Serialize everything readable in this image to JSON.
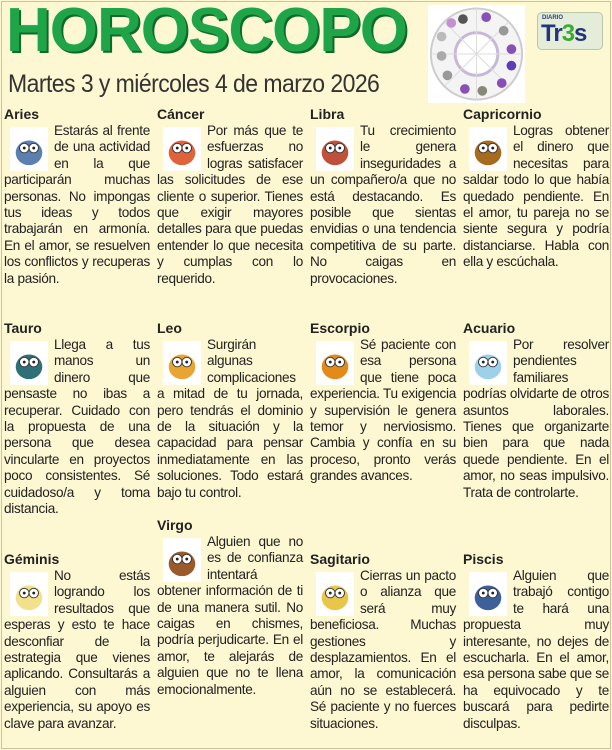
{
  "header": {
    "title": "HOROSCOPO",
    "subtitle": "Martes 3 y miércoles 4 de marzo 2026",
    "logo_small": "DIARIO",
    "logo_text_a": "Tr",
    "logo_text_b": "3",
    "logo_text_c": "s",
    "title_color": "#1fa548"
  },
  "signs": [
    {
      "name": "Aries",
      "icon": "ram-icon",
      "text": "Estarás al frente de una actividad en la que participarán muchas personas. No impongas tus ideas y todos trabajarán en armonía. En el amor, se resuelven los conflictos y recuperas la pasión."
    },
    {
      "name": "Cáncer",
      "icon": "crab-icon",
      "text": "Por más que te esfuerzas no logras satisfacer las solicitudes de ese cliente o superior. Tienes que exigir mayores detalles para que puedas entender lo que necesita y cumplas con lo requerido."
    },
    {
      "name": "Libra",
      "icon": "scales-icon",
      "text": "Tu crecimiento le genera inseguridades a un compañero/a que no está destacando. Es posible que sientas envidias o una tendencia competitiva de su parte. No caigas en provocaciones."
    },
    {
      "name": "Capricornio",
      "icon": "goat-icon",
      "text": "Logras obtener el dinero que necesitas para saldar todo lo que había quedado pendiente. En el amor, tu pareja no se siente segura y podría distanciarse. Habla con ella y escúchala."
    },
    {
      "name": "Tauro",
      "icon": "bull-icon",
      "text": "Llega a tus manos un dinero que pensaste no ibas a recuperar. Cuidado con la propuesta de una persona que desea vincularte en proyectos poco consistentes. Sé cuidadoso/a y toma distancia."
    },
    {
      "name": "Leo",
      "icon": "lion-icon",
      "text": "Surgirán algunas complicaciones a mitad de tu jornada, pero tendrás el dominio de la situación y la capacidad para pensar inmediatamente en las soluciones. Todo estará bajo tu control."
    },
    {
      "name": "Escorpio",
      "icon": "scorpion-icon",
      "text": "Sé paciente con esa persona que tiene poca experiencia. Tu exigencia y supervisión le genera temor y nerviosismo. Cambia y confía en su proceso, pronto verás grandes avances."
    },
    {
      "name": "Acuario",
      "icon": "water-drop-icon",
      "text": "Por resolver pendientes familiares podrías olvidarte de otros asuntos laborales. Tienes que organizarte bien para que nada quede pendiente. En el amor, no seas impulsivo. Trata de controlarte."
    },
    {
      "name": "Géminis",
      "icon": "twins-icon",
      "text": "No estás logrando los resultados que esperas y esto te hace desconfiar de la estrategia que vienes aplicando. Consultarás a alguien con más experiencia, su apoyo es clave para avanzar."
    },
    {
      "name": "Virgo",
      "icon": "virgin-icon",
      "text": "Alguien que no es de confianza intentará obtener información de ti de una manera sutil. No caigas en chismes, podría perjudicarte. En el amor, te alejarás de alguien que no te llena emocionalmente."
    },
    {
      "name": "Sagitario",
      "icon": "archer-icon",
      "text": "Cierras un pacto o alianza que será muy beneficiosa. Muchas gestiones y desplazamientos. En el amor, la comunicación aún no se establecerá. Sé paciente y no fuerces situaciones."
    },
    {
      "name": "Piscis",
      "icon": "fish-icon",
      "text": "Alguien que trabajó contigo te hará una propuesta muy interesante, no dejes de escucharla. En el amor, esa persona sabe que se ha equivocado y te buscará para pedirte disculpas."
    }
  ]
}
